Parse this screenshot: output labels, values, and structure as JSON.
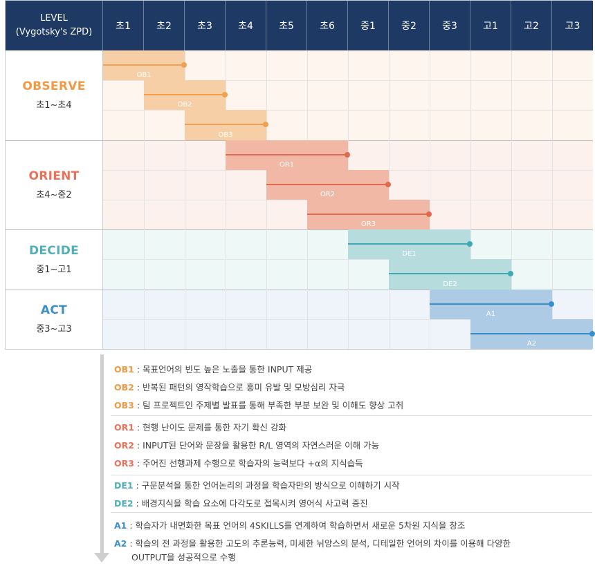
{
  "header": {
    "level_line1": "LEVEL",
    "level_line2": "(Vygotsky's ZPD)",
    "grades": [
      "초1",
      "초2",
      "초3",
      "초4",
      "초5",
      "초6",
      "중1",
      "중2",
      "중3",
      "고1",
      "고2",
      "고3"
    ]
  },
  "colors": {
    "observe": "#f0a050",
    "orient": "#e8735a",
    "decide": "#4fb0b8",
    "act": "#3c8fc8",
    "header_bg": "#1e3a64"
  },
  "bands": [
    {
      "key": "observe",
      "name": "OBSERVE",
      "range": "초1~초4",
      "rows": 3,
      "color": "#f0a050",
      "text_color": "#ef9a45",
      "bg": "#fdf5ee",
      "bar_bg": "#f6cfa6",
      "line": "#f0a050"
    },
    {
      "key": "orient",
      "name": "ORIENT",
      "range": "초4~중2",
      "rows": 3,
      "color": "#e8735a",
      "text_color": "#e8735a",
      "bg": "#fdf1ed",
      "bar_bg": "#f2b8a6",
      "line": "#e06a50"
    },
    {
      "key": "decide",
      "name": "DECIDE",
      "range": "중1~고1",
      "rows": 2,
      "color": "#4fb0b8",
      "text_color": "#4fb0b8",
      "bg": "#eef8f7",
      "bar_bg": "#b7dcdd",
      "line": "#3ea9b3"
    },
    {
      "key": "act",
      "name": "ACT",
      "range": "중3~고3",
      "rows": 2,
      "color": "#3c8fc8",
      "text_color": "#3c8fc8",
      "bg": "#eff4fa",
      "bar_bg": "#aecbe6",
      "line": "#3a8fc8"
    }
  ],
  "stages": [
    {
      "code": "OB1",
      "band": 0,
      "row": 0,
      "start_grade": "초1",
      "end_grade": "초2"
    },
    {
      "code": "OB2",
      "band": 0,
      "row": 1,
      "start_grade": "초2",
      "end_grade": "초3"
    },
    {
      "code": "OB3",
      "band": 0,
      "row": 2,
      "start_grade": "초3",
      "end_grade": "초4"
    },
    {
      "code": "OR1",
      "band": 1,
      "row": 0,
      "start_grade": "초4",
      "end_grade": "초6"
    },
    {
      "code": "OR2",
      "band": 1,
      "row": 1,
      "start_grade": "초5",
      "end_grade": "중1"
    },
    {
      "code": "OR3",
      "band": 1,
      "row": 2,
      "start_grade": "초6",
      "end_grade": "중2"
    },
    {
      "code": "DE1",
      "band": 2,
      "row": 0,
      "start_grade": "중1",
      "end_grade": "중3"
    },
    {
      "code": "DE2",
      "band": 2,
      "row": 1,
      "start_grade": "중2",
      "end_grade": "고1"
    },
    {
      "code": "A1",
      "band": 3,
      "row": 0,
      "start_grade": "중3",
      "end_grade": "고2"
    },
    {
      "code": "A2",
      "band": 3,
      "row": 1,
      "start_grade": "고1",
      "end_grade": "고3"
    }
  ],
  "legend": [
    {
      "code": "OB1",
      "band": 0,
      "text": " : 목표언어의 빈도 높은 노출을 통한 INPUT 제공"
    },
    {
      "code": "OB2",
      "band": 0,
      "text": " : 반복된 패턴의 영작학습으로 흥미 유발 및 모방심리 자극"
    },
    {
      "code": "OB3",
      "band": 0,
      "text": " : 팀 프로젝트인 주제별 발표를 통해 부족한 부분 보완 및 이해도 향상 고취"
    },
    {
      "code": "OR1",
      "band": 1,
      "text": " : 현행 난이도 문제를 통한 자기 확신 강화"
    },
    {
      "code": "OR2",
      "band": 1,
      "text": " : INPUT된 단어와 문장을 활용한  R/L 영역의 자연스러운 이해 가능"
    },
    {
      "code": "OR3",
      "band": 1,
      "text": " : 주어진 선행과제 수행으로 학습자의 능력보다  +α의 지식습득"
    },
    {
      "code": "DE1",
      "band": 2,
      "text": " : 구문분석을 통한 언어논리의 과정을 학습자만의 방식으로 이해하기 시작"
    },
    {
      "code": "DE2",
      "band": 2,
      "text": " : 배경지식을 학습 요소에 다각도로 접목시켜 영어식 사고력 증진"
    },
    {
      "code": "A1",
      "band": 3,
      "text": " : 학습자가 내면화한 목표 언어의 4SKILLS를 연계하여 학습하면서 새로운 5차원 지식을 창조"
    },
    {
      "code": "A2",
      "band": 3,
      "text": " : 학습의 전 과정을 활용한 고도의 추론능력, 미세한 뉘앙스의 분석, 디테일한 언어의 차이를 이용해 다양한",
      "continuation": "OUTPUT을 성공적으로 수행"
    }
  ]
}
